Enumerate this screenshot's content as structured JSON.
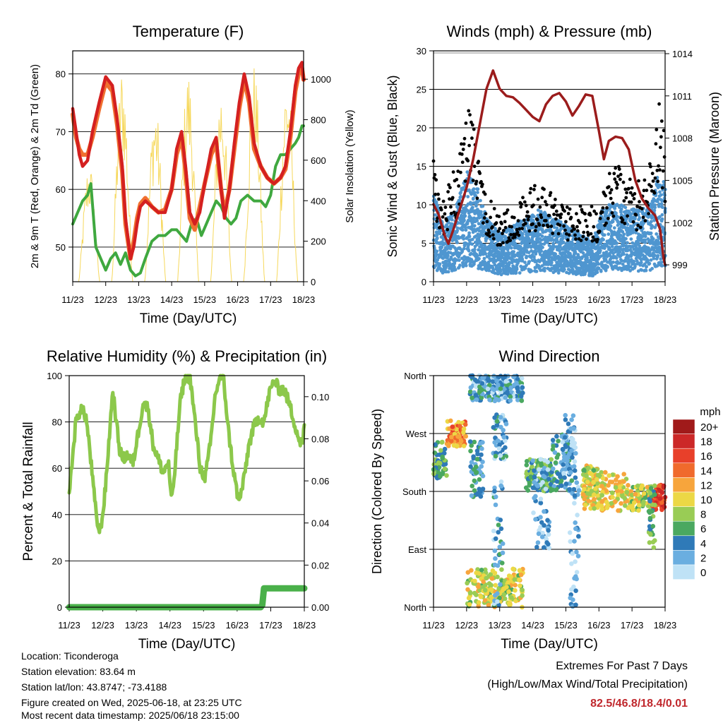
{
  "x_ticks": [
    "11/23",
    "12/23",
    "13/23",
    "14/23",
    "15/23",
    "16/23",
    "17/23",
    "18/23"
  ],
  "chart_data": [
    {
      "type": "line",
      "title": "Temperature (F)",
      "xlabel": "Time (Day/UTC)",
      "ylabel": "2m & 9m T (Red, Orange) & 2m Td (Green)",
      "ylabel_right": "Solar Insolation (Yellow)",
      "xlim": [
        0,
        7
      ],
      "ylim": [
        44,
        84
      ],
      "ylim_right": [
        0,
        1140
      ],
      "yticks": [
        "50",
        "60",
        "70",
        "80"
      ],
      "yticks_right": [
        "0",
        "200",
        "400",
        "600",
        "800",
        "1000"
      ],
      "series": [
        {
          "name": "2m T",
          "color": "#d42020",
          "axis": "left",
          "x": [
            0,
            0.1,
            0.2,
            0.3,
            0.45,
            0.6,
            0.8,
            1.0,
            1.2,
            1.35,
            1.5,
            1.6,
            1.75,
            1.85,
            1.95,
            2.05,
            2.2,
            2.4,
            2.6,
            2.8,
            3.0,
            3.15,
            3.3,
            3.42,
            3.55,
            3.7,
            3.85,
            4.0,
            4.2,
            4.35,
            4.5,
            4.6,
            4.75,
            4.9,
            5.05,
            5.2,
            5.35,
            5.5,
            5.7,
            5.9,
            6.1,
            6.3,
            6.45,
            6.6,
            6.75,
            6.85,
            6.95,
            7.0
          ],
          "y": [
            74,
            70,
            66,
            64,
            65,
            70,
            75,
            79.5,
            78,
            72,
            64,
            55,
            48,
            50,
            54,
            57,
            58,
            57,
            56,
            56,
            60,
            67,
            70,
            64,
            56,
            54,
            56,
            61,
            67,
            69,
            60,
            55,
            60,
            68,
            75,
            80,
            76,
            68,
            64,
            62,
            61,
            62,
            64,
            70,
            78,
            81,
            82,
            79
          ]
        },
        {
          "name": "9m T",
          "color": "#f07030",
          "axis": "left",
          "x": [
            0,
            0.1,
            0.2,
            0.3,
            0.45,
            0.6,
            0.8,
            1.0,
            1.2,
            1.35,
            1.5,
            1.6,
            1.75,
            1.85,
            1.95,
            2.05,
            2.2,
            2.4,
            2.6,
            2.8,
            3.0,
            3.15,
            3.3,
            3.42,
            3.55,
            3.7,
            3.85,
            4.0,
            4.2,
            4.35,
            4.5,
            4.6,
            4.75,
            4.9,
            5.05,
            5.2,
            5.35,
            5.5,
            5.7,
            5.9,
            6.1,
            6.3,
            6.45,
            6.6,
            6.75,
            6.85,
            6.95,
            7.0
          ],
          "y": [
            73,
            69,
            67,
            66,
            66,
            69,
            74,
            78.5,
            77,
            71,
            63,
            54,
            48,
            51,
            55,
            57.5,
            58.5,
            57,
            56,
            56.5,
            60,
            66,
            69,
            63,
            55,
            53,
            57,
            61,
            66,
            68,
            60,
            56,
            60,
            67,
            74,
            79,
            75,
            67,
            64,
            62,
            61,
            62,
            63.5,
            69,
            77,
            80,
            81,
            79
          ]
        },
        {
          "name": "2m Td",
          "color": "#3fa83f",
          "axis": "left",
          "x": [
            0,
            0.15,
            0.3,
            0.45,
            0.55,
            0.7,
            0.85,
            1.0,
            1.15,
            1.3,
            1.45,
            1.6,
            1.75,
            1.9,
            2.05,
            2.2,
            2.4,
            2.6,
            2.8,
            3.0,
            3.15,
            3.3,
            3.45,
            3.6,
            3.75,
            3.9,
            4.05,
            4.2,
            4.35,
            4.5,
            4.65,
            4.8,
            4.95,
            5.1,
            5.3,
            5.5,
            5.7,
            5.85,
            6.0,
            6.15,
            6.3,
            6.45,
            6.6,
            6.75,
            6.85,
            6.95,
            7.0
          ],
          "y": [
            54,
            56,
            58,
            59,
            61,
            50,
            48,
            46,
            48,
            49,
            47,
            49,
            46,
            45,
            45.5,
            48,
            51,
            52,
            52,
            53,
            53,
            52,
            51,
            54,
            55,
            52,
            54,
            56,
            58,
            57,
            55,
            54,
            55,
            58,
            59,
            58,
            58,
            57,
            59,
            64,
            66,
            66,
            67,
            68,
            69,
            71,
            71
          ]
        },
        {
          "name": "Solar Insolation",
          "color": "#f5d44a",
          "axis": "right",
          "peak_days": [
            0.5,
            1.5,
            2.5,
            3.5,
            4.5,
            5.5,
            6.5
          ],
          "peaks": [
            600,
            1080,
            900,
            1060,
            1000,
            1090,
            1050
          ]
        }
      ]
    },
    {
      "type": "scatter",
      "title": "Winds (mph) & Pressure (mb)",
      "xlabel": "Time (Day/UTC)",
      "ylabel": "Sonic Wind & Gust (Blue, Black)",
      "ylabel_right": "Station Pressure (Maroon)",
      "xlim": [
        0,
        7
      ],
      "ylim": [
        0,
        30
      ],
      "ylim_right": [
        997.8,
        1014.2
      ],
      "yticks": [
        "0",
        "5",
        "10",
        "15",
        "20",
        "25",
        "30"
      ],
      "yticks_right": [
        "999",
        "1002",
        "1005",
        "1008",
        "1011",
        "1014"
      ],
      "series": [
        {
          "name": "Wind",
          "color": "#4f96d0",
          "envelope": [
            [
              0,
              11
            ],
            [
              0.3,
              7
            ],
            [
              0.7,
              10
            ],
            [
              1.0,
              14
            ],
            [
              1.3,
              12
            ],
            [
              1.6,
              8
            ],
            [
              2.0,
              6
            ],
            [
              2.4,
              7
            ],
            [
              2.8,
              8
            ],
            [
              3.2,
              9
            ],
            [
              3.6,
              8
            ],
            [
              4.0,
              7
            ],
            [
              4.4,
              6
            ],
            [
              4.8,
              5
            ],
            [
              5.1,
              9
            ],
            [
              5.5,
              10
            ],
            [
              5.9,
              9
            ],
            [
              6.3,
              9
            ],
            [
              6.6,
              10
            ],
            [
              6.8,
              14
            ],
            [
              7.0,
              12
            ]
          ]
        },
        {
          "name": "Gust",
          "color": "#000000",
          "envelope": [
            [
              0,
              15
            ],
            [
              0.3,
              11
            ],
            [
              0.7,
              15
            ],
            [
              1.0,
              23
            ],
            [
              1.2,
              20
            ],
            [
              1.5,
              12
            ],
            [
              2.0,
              8
            ],
            [
              2.5,
              10
            ],
            [
              3.0,
              12
            ],
            [
              3.4,
              12
            ],
            [
              3.8,
              10
            ],
            [
              4.2,
              9
            ],
            [
              4.6,
              10
            ],
            [
              5.0,
              9
            ],
            [
              5.3,
              15
            ],
            [
              5.7,
              14
            ],
            [
              6.1,
              12
            ],
            [
              6.5,
              14
            ],
            [
              6.8,
              23
            ],
            [
              7.0,
              18
            ]
          ]
        },
        {
          "name": "Station Pressure",
          "color": "#9b1c1c",
          "x": [
            0,
            0.15,
            0.35,
            0.45,
            0.6,
            0.8,
            1.0,
            1.2,
            1.4,
            1.6,
            1.8,
            2.0,
            2.2,
            2.4,
            2.6,
            2.8,
            3.0,
            3.2,
            3.4,
            3.6,
            3.8,
            4.0,
            4.2,
            4.4,
            4.6,
            4.8,
            5.0,
            5.15,
            5.3,
            5.5,
            5.7,
            5.9,
            6.1,
            6.3,
            6.5,
            6.7,
            6.85,
            6.95,
            7.0
          ],
          "y": [
            1003.3,
            1002.6,
            1001.0,
            1000.5,
            1001.5,
            1003.0,
            1004.5,
            1006.5,
            1009.0,
            1011.5,
            1012.8,
            1011.5,
            1011.0,
            1010.9,
            1010.5,
            1010.0,
            1009.5,
            1009.2,
            1010.4,
            1011.0,
            1011.2,
            1010.6,
            1009.6,
            1010.3,
            1011.1,
            1011.0,
            1008.5,
            1006.5,
            1007.8,
            1008.1,
            1008.0,
            1007.2,
            1005.0,
            1003.7,
            1003.0,
            1002.5,
            1001.5,
            999.5,
            999.0
          ]
        }
      ]
    },
    {
      "type": "line",
      "title": "Relative Humidity (%) & Precipitation (in)",
      "xlabel": "Time (Day/UTC)",
      "ylabel": "Percent & Total Rainfall",
      "xlim": [
        0,
        7
      ],
      "ylim": [
        0,
        100
      ],
      "ylim_right": [
        0,
        0.11
      ],
      "yticks": [
        "0",
        "20",
        "40",
        "60",
        "80",
        "100"
      ],
      "yticks_right": [
        "0.00",
        "0.02",
        "0.04",
        "0.06",
        "0.08",
        "0.10"
      ],
      "series": [
        {
          "name": "Relative Humidity",
          "color": "#8cc84b",
          "axis": "left",
          "x": [
            0,
            0.1,
            0.2,
            0.35,
            0.5,
            0.6,
            0.7,
            0.8,
            0.9,
            1.0,
            1.1,
            1.2,
            1.3,
            1.4,
            1.5,
            1.6,
            1.75,
            1.9,
            2.05,
            2.2,
            2.35,
            2.5,
            2.65,
            2.8,
            2.95,
            3.05,
            3.15,
            3.3,
            3.45,
            3.6,
            3.75,
            3.9,
            4.05,
            4.2,
            4.35,
            4.5,
            4.6,
            4.75,
            4.9,
            5.05,
            5.2,
            5.35,
            5.5,
            5.65,
            5.8,
            5.95,
            6.1,
            6.25,
            6.4,
            6.55,
            6.7,
            6.85,
            6.95,
            7.0
          ],
          "y": [
            49,
            65,
            80,
            86,
            82,
            70,
            55,
            40,
            32,
            40,
            55,
            75,
            94,
            80,
            68,
            64,
            66,
            62,
            75,
            88,
            86,
            70,
            64,
            58,
            63,
            45,
            60,
            88,
            100,
            99,
            80,
            60,
            56,
            70,
            92,
            100,
            98,
            75,
            58,
            45,
            55,
            70,
            78,
            82,
            80,
            92,
            98,
            94,
            94,
            88,
            80,
            72,
            70,
            78
          ]
        },
        {
          "name": "Total Precipitation",
          "color": "#4ab04a",
          "axis": "right",
          "x": [
            0,
            5.7,
            5.75,
            5.8,
            7.0
          ],
          "y": [
            0,
            0,
            0.001,
            0.009,
            0.009
          ]
        }
      ]
    },
    {
      "type": "scatter",
      "title": "Wind Direction",
      "xlabel": "Time (Day/UTC)",
      "ylabel": "Direction (Colored By Speed)",
      "xlim": [
        0,
        7
      ],
      "ylim": [
        0,
        360
      ],
      "yticks": [
        "North",
        "East",
        "South",
        "West",
        "North"
      ],
      "colorbar_title": "mph",
      "colorbar_labels": [
        "20+",
        "18",
        "16",
        "14",
        "12",
        "10",
        "8",
        "6",
        "4",
        "2",
        "0"
      ],
      "colorbar_colors": [
        "#a01a1a",
        "#cc2828",
        "#e8402a",
        "#f06a2c",
        "#f7a53c",
        "#ecd845",
        "#99cc55",
        "#4aa860",
        "#2f7ab8",
        "#6aaee0",
        "#bfe2f6"
      ],
      "series": [
        {
          "name": "Direction",
          "segments": [
            [
              0,
              0.4,
              200,
              260,
              6
            ],
            [
              0.4,
              1.0,
              250,
              290,
              13
            ],
            [
              1.1,
              1.5,
              170,
              260,
              4
            ],
            [
              1.0,
              2.7,
              0,
              60,
              9
            ],
            [
              1.1,
              2.7,
              320,
              360,
              3
            ],
            [
              1.8,
              2.2,
              230,
              300,
              3
            ],
            [
              1.8,
              2.1,
              0,
              200,
              3
            ],
            [
              2.8,
              3.6,
              180,
              230,
              6
            ],
            [
              3.0,
              3.5,
              90,
              230,
              2
            ],
            [
              3.6,
              4.2,
              180,
              270,
              4
            ],
            [
              3.9,
              4.3,
              200,
              300,
              2
            ],
            [
              4.1,
              4.4,
              0,
              200,
              2
            ],
            [
              4.5,
              5.0,
              170,
              220,
              9
            ],
            [
              4.5,
              6.0,
              150,
              210,
              10
            ],
            [
              6.0,
              6.6,
              150,
              190,
              9
            ],
            [
              6.6,
              7.0,
              150,
              190,
              16
            ],
            [
              6.5,
              6.7,
              90,
              200,
              6
            ]
          ]
        }
      ]
    }
  ],
  "info": {
    "location": "Location: Ticonderoga",
    "elevation": "Station elevation: 83.64 m",
    "latlon": "Station lat/lon: 43.8747; -73.4188",
    "created": "Figure created on Wed, 2025-06-18, at 23:25 UTC",
    "recent": "Most recent data timestamp: 2025/06/18 23:15:00"
  },
  "extremes": {
    "title": "Extremes For Past 7 Days",
    "subtitle": "(High/Low/Max Wind/Total Precipitation)",
    "values": "82.5/46.8/18.4/0.01"
  }
}
